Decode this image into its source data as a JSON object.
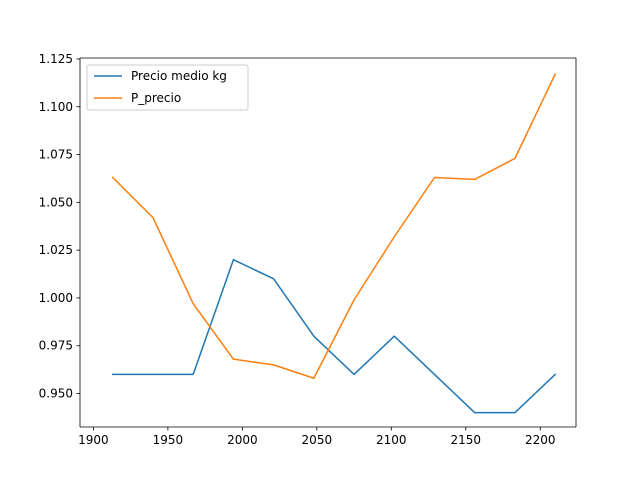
{
  "chart_data": {
    "type": "line",
    "title": "",
    "xlabel": "",
    "ylabel": "",
    "xlim": [
      1891,
      2224
    ],
    "ylim": [
      0.9325,
      1.1255
    ],
    "x_ticks": [
      1900,
      1950,
      2000,
      2050,
      2100,
      2150,
      2200
    ],
    "x_tick_labels": [
      "1900",
      "1950",
      "2000",
      "2050",
      "2100",
      "2150",
      "2200"
    ],
    "y_ticks": [
      0.95,
      0.975,
      1.0,
      1.025,
      1.05,
      1.075,
      1.1,
      1.125
    ],
    "y_tick_labels": [
      "0.950",
      "0.975",
      "1.000",
      "1.025",
      "1.050",
      "1.075",
      "1.100",
      "1.125"
    ],
    "grid": false,
    "legend_position": "top-left",
    "x": [
      1913,
      1940,
      1967,
      1994,
      2021,
      2048,
      2075,
      2102,
      2129,
      2156,
      2183,
      2210
    ],
    "series": [
      {
        "name": "Precio medio kg",
        "color": "#1f77b4",
        "values": [
          0.96,
          0.96,
          0.96,
          1.02,
          1.01,
          0.98,
          0.96,
          0.98,
          0.96,
          0.94,
          0.94,
          0.96
        ]
      },
      {
        "name": "P_precio",
        "color": "#ff7f0e",
        "values": [
          1.063,
          1.042,
          0.997,
          0.968,
          0.965,
          0.958,
          0.999,
          1.032,
          1.063,
          1.062,
          1.073,
          1.117
        ]
      }
    ]
  }
}
